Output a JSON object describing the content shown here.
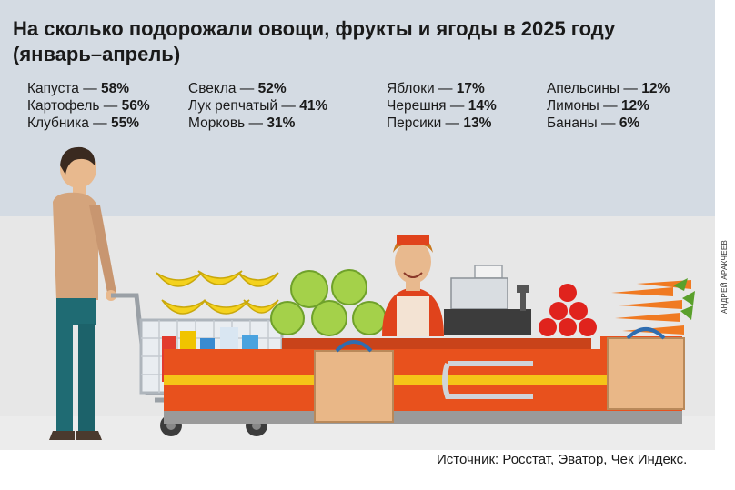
{
  "title": "На сколько подорожали овощи, фрукты и ягоды в 2025 году (январь–апрель)",
  "columns": [
    [
      {
        "name": "Капуста",
        "value": "58%"
      },
      {
        "name": "Картофель",
        "value": "56%"
      },
      {
        "name": "Клубника",
        "value": "55%"
      }
    ],
    [
      {
        "name": "Свекла",
        "value": "52%"
      },
      {
        "name": "Лук репчатый",
        "value": "41%"
      },
      {
        "name": "Морковь",
        "value": "31%"
      }
    ],
    [
      {
        "name": "Яблоки",
        "value": "17%"
      },
      {
        "name": "Черешня",
        "value": "14%"
      },
      {
        "name": "Персики",
        "value": "13%"
      }
    ],
    [
      {
        "name": "Апельсины",
        "value": "12%"
      },
      {
        "name": "Лимоны",
        "value": "12%"
      },
      {
        "name": "Бананы",
        "value": "6%"
      }
    ]
  ],
  "source": "Источник: Росстат, Эватор, Чек Индекс.",
  "credit": "АНДРЕЙ АРАКЧЕЕВ",
  "colors": {
    "banner": "#d4dbe3",
    "counter_orange": "#e8511d",
    "stripe_yellow": "#f5c518",
    "shirt": "#d4a47c",
    "pants": "#1f6b73",
    "uniform": "#e0431c"
  }
}
